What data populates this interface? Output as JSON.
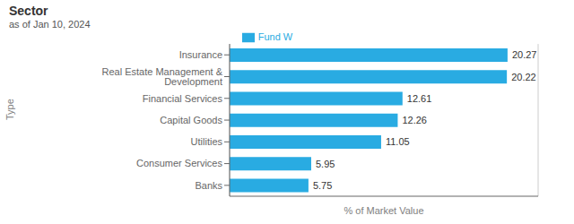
{
  "chart_data": {
    "type": "bar",
    "orientation": "horizontal",
    "title": "Sector",
    "subtitle": "as of Jan 10, 2024",
    "x_label": "% of Market Value",
    "y_label": "Type",
    "categories": [
      "Insurance",
      "Real Estate Management & Development",
      "Financial Services",
      "Capital Goods",
      "Utilities",
      "Consumer Services",
      "Banks"
    ],
    "series": [
      {
        "name": "Fund W",
        "color": "#29ABE2",
        "values": [
          20.27,
          20.22,
          12.61,
          12.26,
          11.05,
          5.95,
          5.75
        ]
      }
    ],
    "xlim": [
      0,
      22.5
    ],
    "xticks": [
      0,
      2,
      4,
      6,
      8,
      10,
      12,
      14,
      16,
      18,
      20,
      22
    ],
    "grid": true,
    "legend": "top",
    "data_labels": true,
    "tick_labels": "y"
  }
}
